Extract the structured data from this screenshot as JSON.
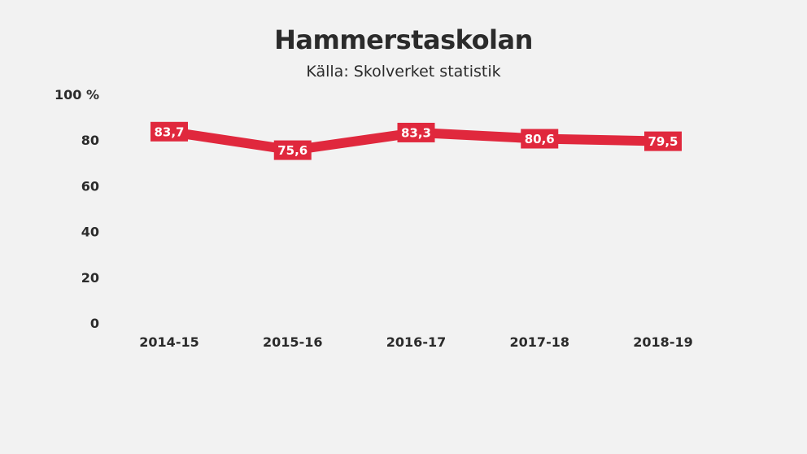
{
  "chart_data": {
    "type": "line",
    "title": "Hammerstaskolan",
    "subtitle": "Källa: Skolverket statistik",
    "categories": [
      "2014-15",
      "2015-16",
      "2016-17",
      "2017-18",
      "2018-19"
    ],
    "series": [
      {
        "values": [
          83.7,
          75.6,
          83.3,
          80.6,
          79.5
        ],
        "labels": [
          "83,7",
          "75,6",
          "83,3",
          "80,6",
          "79,5"
        ],
        "color": "#e0283d"
      }
    ],
    "yticks": [
      0,
      20,
      40,
      60,
      80,
      100
    ],
    "ytick_labels": [
      "0",
      "20",
      "40",
      "60",
      "80",
      "100 %"
    ],
    "ylim": [
      0,
      100
    ],
    "grid": false,
    "legend": "none"
  }
}
